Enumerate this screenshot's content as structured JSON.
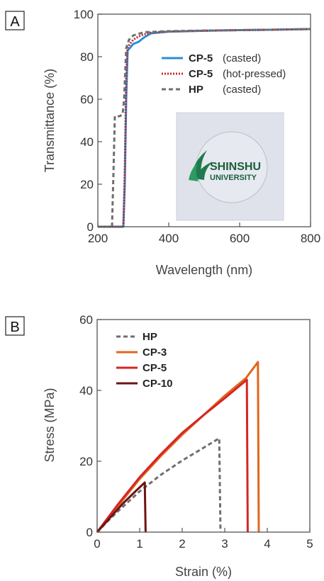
{
  "panels": [
    {
      "label": "A"
    },
    {
      "label": "B"
    }
  ],
  "photo_logo": {
    "line1": "SHINSHU",
    "line2": "UNIVERSITY",
    "brand_color": "#1f7a4d"
  },
  "chart_data": [
    {
      "type": "line",
      "panel": "A",
      "xlabel": "Wavelength (nm)",
      "ylabel": "Transmittance (%)",
      "xlim": [
        200,
        800
      ],
      "ylim": [
        0,
        100
      ],
      "xticks": [
        200,
        400,
        600,
        800
      ],
      "yticks": [
        0,
        20,
        40,
        60,
        80,
        100
      ],
      "grid": false,
      "legend_position": "upper-right",
      "series": [
        {
          "name": "CP-5",
          "note": "(casted)",
          "color": "#2b8fd6",
          "dash": "solid",
          "points": [
            [
              200,
              0
            ],
            [
              240,
              0
            ],
            [
              268,
              0
            ],
            [
              272,
              0
            ],
            [
              276,
              20
            ],
            [
              280,
              60
            ],
            [
              284,
              83
            ],
            [
              290,
              84
            ],
            [
              300,
              86
            ],
            [
              315,
              87
            ],
            [
              330,
              89
            ],
            [
              350,
              91
            ],
            [
              400,
              91.8
            ],
            [
              500,
              92.2
            ],
            [
              600,
              92.5
            ],
            [
              700,
              92.7
            ],
            [
              800,
              93
            ]
          ]
        },
        {
          "name": "CP-5",
          "note": "(hot-pressed)",
          "color": "#c0292b",
          "dash": "dotted",
          "points": [
            [
              200,
              0
            ],
            [
              240,
              0
            ],
            [
              268,
              0
            ],
            [
              272,
              0
            ],
            [
              276,
              25
            ],
            [
              280,
              70
            ],
            [
              284,
              84
            ],
            [
              290,
              86
            ],
            [
              300,
              88
            ],
            [
              315,
              89.5
            ],
            [
              330,
              90.5
            ],
            [
              350,
              91.3
            ],
            [
              400,
              91.8
            ],
            [
              500,
              92.2
            ],
            [
              600,
              92.5
            ],
            [
              700,
              92.7
            ],
            [
              800,
              93
            ]
          ]
        },
        {
          "name": "HP",
          "note": "(casted)",
          "color": "#6f6f6f",
          "dash": "dashed",
          "points": [
            [
              200,
              0
            ],
            [
              235,
              0
            ],
            [
              240,
              0
            ],
            [
              244,
              25
            ],
            [
              248,
              52
            ],
            [
              255,
              52
            ],
            [
              262,
              52
            ],
            [
              270,
              53
            ],
            [
              274,
              60
            ],
            [
              280,
              84
            ],
            [
              288,
              88
            ],
            [
              300,
              90
            ],
            [
              330,
              91.5
            ],
            [
              400,
              92
            ],
            [
              500,
              92.3
            ],
            [
              600,
              92.5
            ],
            [
              700,
              92.7
            ],
            [
              800,
              93
            ]
          ]
        }
      ]
    },
    {
      "type": "line",
      "panel": "B",
      "xlabel": "Strain (%)",
      "ylabel": "Stress (MPa)",
      "xlim": [
        0,
        5
      ],
      "ylim": [
        0,
        60
      ],
      "xticks": [
        0,
        1,
        2,
        3,
        4,
        5
      ],
      "yticks": [
        0,
        20,
        40,
        60
      ],
      "grid": false,
      "legend_position": "upper-left",
      "series": [
        {
          "name": "HP",
          "color": "#6f6f6f",
          "dash": "dashed",
          "points": [
            [
              0,
              0
            ],
            [
              0.2,
              2.5
            ],
            [
              0.5,
              6
            ],
            [
              1.0,
              11.5
            ],
            [
              1.5,
              16.2
            ],
            [
              2.0,
              20.2
            ],
            [
              2.5,
              23.8
            ],
            [
              2.87,
              26.5
            ],
            [
              2.9,
              0
            ]
          ]
        },
        {
          "name": "CP-3",
          "color": "#e0661e",
          "dash": "solid",
          "points": [
            [
              0,
              0
            ],
            [
              0.2,
              3
            ],
            [
              0.5,
              7.5
            ],
            [
              1.0,
              15
            ],
            [
              1.5,
              21.5
            ],
            [
              2.0,
              27.5
            ],
            [
              2.5,
              33
            ],
            [
              3.0,
              38.5
            ],
            [
              3.5,
              43.5
            ],
            [
              3.78,
              48
            ],
            [
              3.8,
              0
            ]
          ]
        },
        {
          "name": "CP-5",
          "color": "#d62424",
          "dash": "solid",
          "points": [
            [
              0,
              0
            ],
            [
              0.2,
              3.2
            ],
            [
              0.5,
              8
            ],
            [
              1.0,
              15.5
            ],
            [
              1.5,
              22
            ],
            [
              2.0,
              28
            ],
            [
              2.5,
              33
            ],
            [
              3.0,
              37.8
            ],
            [
              3.52,
              43
            ],
            [
              3.54,
              0
            ]
          ]
        },
        {
          "name": "CP-10",
          "color": "#6b1515",
          "dash": "solid",
          "points": [
            [
              0,
              0
            ],
            [
              0.3,
              4
            ],
            [
              0.6,
              8
            ],
            [
              0.9,
              11.5
            ],
            [
              1.12,
              14
            ],
            [
              1.14,
              0
            ]
          ]
        }
      ]
    }
  ]
}
